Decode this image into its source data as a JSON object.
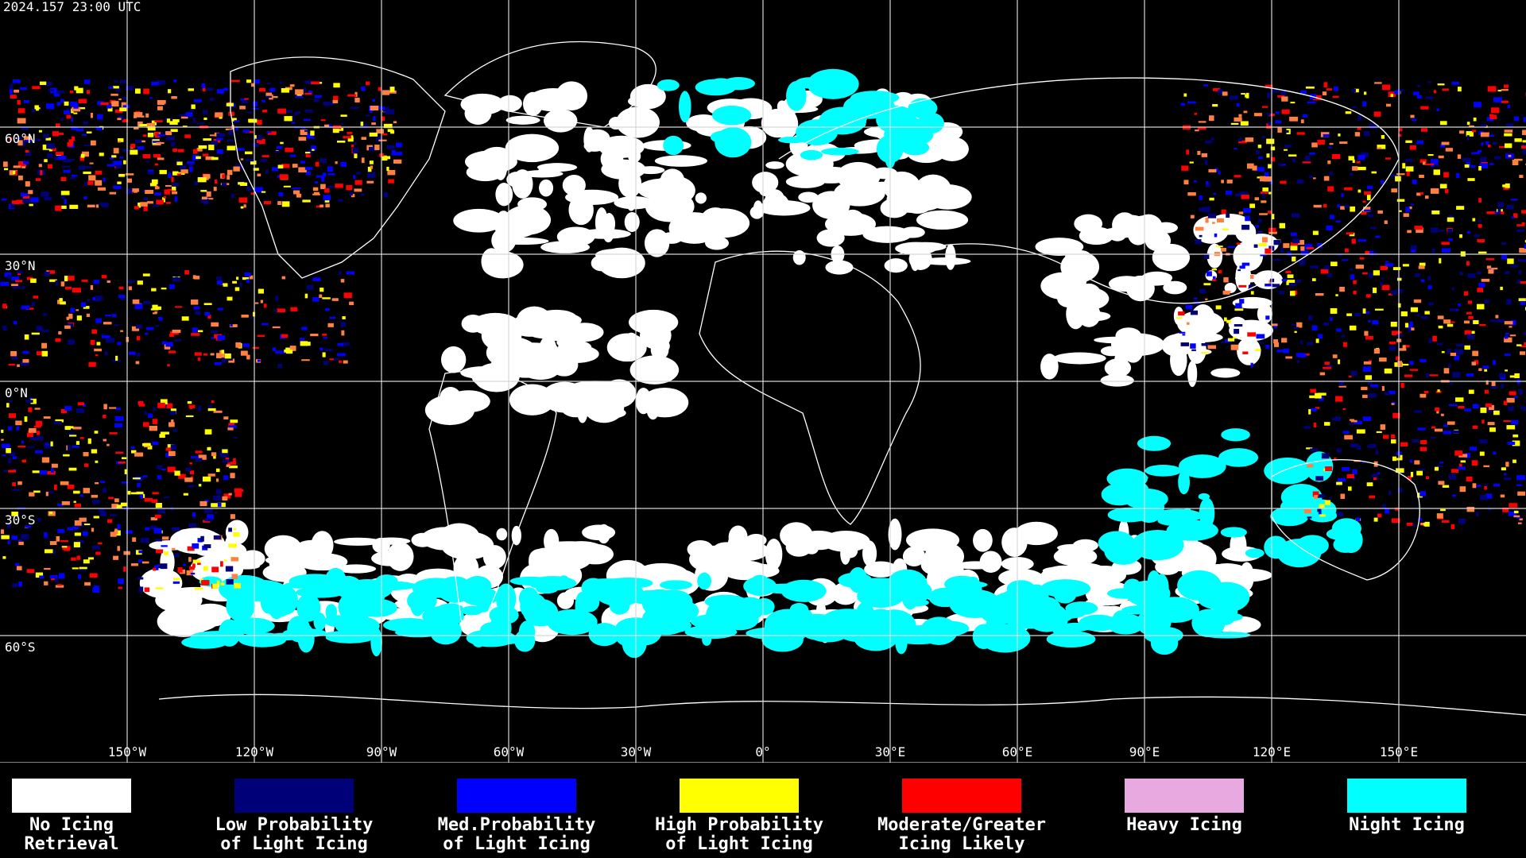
{
  "header": {
    "timestamp": "2024.157 23:00 UTC"
  },
  "map": {
    "latitude_labels": [
      "60°N",
      "30°N",
      "0°N",
      "30°S",
      "60°S"
    ],
    "longitude_labels": [
      "150°W",
      "120°W",
      "90°W",
      "60°W",
      "30°W",
      "0°",
      "30°E",
      "60°E",
      "90°E",
      "120°E",
      "150°E"
    ]
  },
  "legend": {
    "items": [
      {
        "color": "#ffffff",
        "lines": [
          "No Icing",
          "Retrieval"
        ]
      },
      {
        "color": "#000078",
        "lines": [
          "Low Probability",
          "of Light Icing"
        ]
      },
      {
        "color": "#0000ff",
        "lines": [
          "Med.Probability",
          "of Light Icing"
        ]
      },
      {
        "color": "#ffff00",
        "lines": [
          "High Probability",
          "of Light Icing"
        ]
      },
      {
        "color": "#ff0000",
        "lines": [
          "Moderate/Greater",
          "Icing Likely"
        ]
      },
      {
        "color": "#e8a8e0",
        "lines": [
          "Heavy Icing"
        ]
      },
      {
        "color": "#00ffff",
        "lines": [
          "Night Icing"
        ]
      }
    ]
  }
}
